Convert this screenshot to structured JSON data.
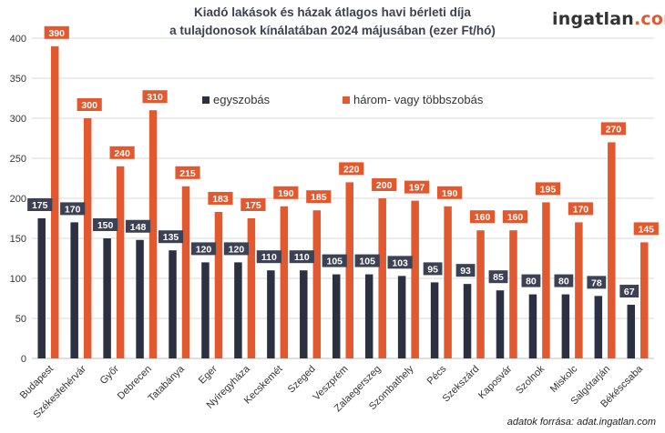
{
  "header": {
    "title_line1": "Kiadó lakások és házak átlagos havi bérleti díja",
    "title_line2": "a tulajdonosok kínálatában 2024 májusában (ezer Ft/hó)",
    "logo_main": "ingatlan",
    "logo_suffix": ".com"
  },
  "footer": {
    "source": "adatok forrása: adat.ingatlan.com"
  },
  "colors": {
    "series1": "#2b3142",
    "series2": "#e2592f",
    "grid": "#d9d9d9",
    "label_bg1": "#3c4254",
    "label_bg2": "#e2592f"
  },
  "chart_data": {
    "type": "bar",
    "categories": [
      "Budapest",
      "Székesfehérvár",
      "Győr",
      "Debrecen",
      "Tatabánya",
      "Eger",
      "Nyíregyháza",
      "Kecskemét",
      "Szeged",
      "Veszprém",
      "Zalaegerszeg",
      "Szombathely",
      "Pécs",
      "Szekszárd",
      "Kaposvár",
      "Szolnok",
      "Miskolc",
      "Salgótarján",
      "Békéscsaba"
    ],
    "series": [
      {
        "name": "egyszobás",
        "values": [
          175,
          170,
          150,
          148,
          135,
          120,
          120,
          110,
          110,
          105,
          105,
          103,
          95,
          93,
          85,
          80,
          80,
          78,
          67
        ]
      },
      {
        "name": "három- vagy többszobás",
        "values": [
          390,
          300,
          240,
          310,
          215,
          183,
          175,
          190,
          185,
          220,
          200,
          197,
          190,
          160,
          160,
          195,
          170,
          270,
          145
        ]
      }
    ],
    "yticks": [
      0,
      50,
      100,
      150,
      200,
      250,
      300,
      350,
      400
    ],
    "ylim": [
      0,
      400
    ],
    "grid": true,
    "legend_position": "top-center",
    "title": "Kiadó lakások és házak átlagos havi bérleti díja a tulajdonosok kínálatában 2024 májusában (ezer Ft/hó)"
  }
}
